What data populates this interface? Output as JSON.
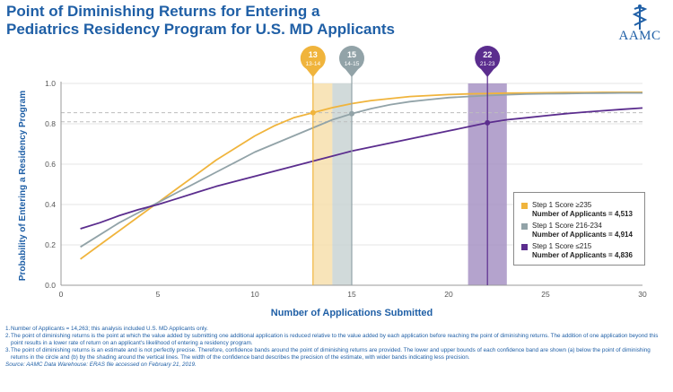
{
  "header": {
    "title_line1": "Point of Diminishing Returns for Entering a",
    "title_line2": "Pediatrics Residency Program for U.S. MD Applicants"
  },
  "logo": {
    "text": "AAMC",
    "icon": "caduceus-icon"
  },
  "colors": {
    "gold": "#f0b43c",
    "gray": "#92a3a8",
    "purple": "#5b2d8e",
    "axis_blue": "#1f5fa6",
    "grid": "#d9d9d9"
  },
  "chart_data": {
    "type": "line",
    "title": "Point of Diminishing Returns for Entering a Pediatrics Residency Program for U.S. MD Applicants",
    "xlabel": "Number of Applications Submitted",
    "ylabel": "Probability of Entering a Residency Program",
    "xlim": [
      0,
      30
    ],
    "ylim": [
      0,
      1.0
    ],
    "xticks": [
      0,
      5,
      10,
      15,
      20,
      25,
      30
    ],
    "yticks": [
      0.0,
      0.2,
      0.4,
      0.6,
      0.8,
      1.0
    ],
    "ytick_labels": [
      "0.0",
      "0.2",
      "0.4",
      "0.6",
      "0.8",
      "1.0"
    ],
    "grid": "horizontal",
    "series": [
      {
        "name": "Step 1 Score ≥235",
        "applicants": "Number of Applicants = 4,513",
        "color": "#f0b43c",
        "x": [
          1,
          2,
          3,
          4,
          5,
          6,
          7,
          8,
          9,
          10,
          11,
          12,
          13,
          14,
          15,
          16,
          17,
          18,
          19,
          20,
          21,
          22,
          23,
          24,
          25,
          26,
          27,
          28,
          29,
          30
        ],
        "y": [
          0.13,
          0.2,
          0.27,
          0.34,
          0.41,
          0.48,
          0.55,
          0.62,
          0.68,
          0.74,
          0.79,
          0.83,
          0.855,
          0.88,
          0.9,
          0.915,
          0.925,
          0.935,
          0.94,
          0.945,
          0.948,
          0.95,
          0.952,
          0.953,
          0.954,
          0.955,
          0.955,
          0.956,
          0.956,
          0.956
        ],
        "point": {
          "x": 13,
          "y": 0.855,
          "label": "13",
          "band_label": "13-14",
          "band": [
            13,
            14
          ]
        }
      },
      {
        "name": "Step 1 Score 216-234",
        "applicants": "Number of Applicants = 4,914",
        "color": "#92a3a8",
        "x": [
          1,
          2,
          3,
          4,
          5,
          6,
          7,
          8,
          9,
          10,
          11,
          12,
          13,
          14,
          15,
          16,
          17,
          18,
          19,
          20,
          21,
          22,
          23,
          24,
          25,
          26,
          27,
          28,
          29,
          30
        ],
        "y": [
          0.19,
          0.25,
          0.31,
          0.36,
          0.41,
          0.46,
          0.51,
          0.56,
          0.61,
          0.66,
          0.7,
          0.74,
          0.78,
          0.82,
          0.85,
          0.875,
          0.895,
          0.91,
          0.92,
          0.93,
          0.935,
          0.94,
          0.944,
          0.947,
          0.949,
          0.95,
          0.951,
          0.952,
          0.953,
          0.953
        ],
        "point": {
          "x": 15,
          "y": 0.85,
          "label": "15",
          "band_label": "14-15",
          "band": [
            14,
            15
          ]
        }
      },
      {
        "name": "Step 1 Score ≤215",
        "applicants": "Number of Applicants = 4,836",
        "color": "#5b2d8e",
        "x": [
          1,
          2,
          3,
          4,
          5,
          6,
          7,
          8,
          9,
          10,
          11,
          12,
          13,
          14,
          15,
          16,
          17,
          18,
          19,
          20,
          21,
          22,
          23,
          24,
          25,
          26,
          27,
          28,
          29,
          30
        ],
        "y": [
          0.28,
          0.31,
          0.345,
          0.375,
          0.4,
          0.43,
          0.46,
          0.49,
          0.515,
          0.54,
          0.565,
          0.59,
          0.615,
          0.64,
          0.665,
          0.685,
          0.705,
          0.725,
          0.745,
          0.765,
          0.785,
          0.805,
          0.82,
          0.83,
          0.84,
          0.85,
          0.858,
          0.865,
          0.872,
          0.878
        ],
        "point": {
          "x": 22,
          "y": 0.805,
          "label": "22",
          "band_label": "21-23",
          "band": [
            21,
            23
          ]
        }
      }
    ],
    "reference_lines": [
      0.855,
      0.81
    ]
  },
  "notes": [
    {
      "num": "1.",
      "text": "Number of Applicants = 14,263; this analysis included U.S. MD Applicants only."
    },
    {
      "num": "2.",
      "text": "The point of diminishing returns is the point at which the value added by submitting one additional application is reduced relative to the value added by each application before reaching the point of diminishing returns. The addition of one application beyond this point results in a lower rate of return on an applicant's likelihood of entering a residency program."
    },
    {
      "num": "3.",
      "text": "The point of diminishing returns is an estimate and is not perfectly precise. Therefore, confidence bands around the point of diminishing returns are provided. The lower and upper bounds of each confidence band are shown (a) below the point of diminishing returns in the circle and (b) by the shading around the vertical lines. The width of the confidence band describes the precision of the estimate, with wider bands indicating less precision."
    }
  ],
  "source": "Source: AAMC Data Warehouse: ERAS file accessed on February 21, 2019."
}
